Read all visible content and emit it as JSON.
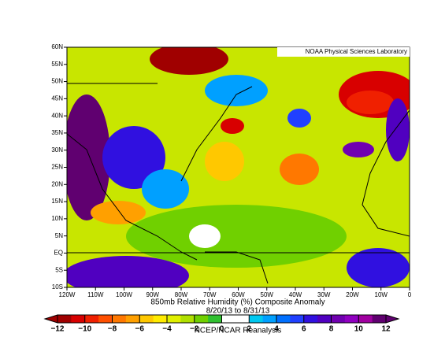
{
  "map": {
    "source_label": "NOAA Physical Sciences Laboratory",
    "title": "850mb Relative Humidity (%) Composite Anomaly",
    "dates": "8/20/13  to 8/31/13",
    "reanalysis": "NCEP/NCAR Reanalysis",
    "lat_labels": [
      "60N",
      "55N",
      "50N",
      "45N",
      "40N",
      "35N",
      "30N",
      "25N",
      "20N",
      "15N",
      "10N",
      "5N",
      "EQ",
      "5S",
      "10S"
    ],
    "lon_labels": [
      "120W",
      "110W",
      "100W",
      "90W",
      "80W",
      "70W",
      "60W",
      "50W",
      "40W",
      "30W",
      "20W",
      "10W",
      "0"
    ],
    "colorbar": {
      "lim": [
        -12,
        12
      ],
      "ticks": [
        {
          "value": -12,
          "label": "−12"
        },
        {
          "value": -10,
          "label": "−10"
        },
        {
          "value": -8,
          "label": "−8"
        },
        {
          "value": -6,
          "label": "−6"
        },
        {
          "value": -4,
          "label": "−4"
        },
        {
          "value": -2,
          "label": "−2"
        },
        0,
        2,
        4,
        6,
        8,
        10,
        12
      ],
      "colors": [
        "#a00000",
        "#d80000",
        "#f02000",
        "#ff5000",
        "#ff7800",
        "#ffa000",
        "#ffc800",
        "#ffeb00",
        "#e0f000",
        "#b0e000",
        "#70d000",
        "#30c030",
        "#ffffff",
        "#ffffff",
        "#00c8f0",
        "#00a0ff",
        "#0070ff",
        "#2040ff",
        "#3010e0",
        "#5000c0",
        "#7000b0",
        "#9000c0",
        "#a000a0",
        "#600070"
      ]
    }
  }
}
